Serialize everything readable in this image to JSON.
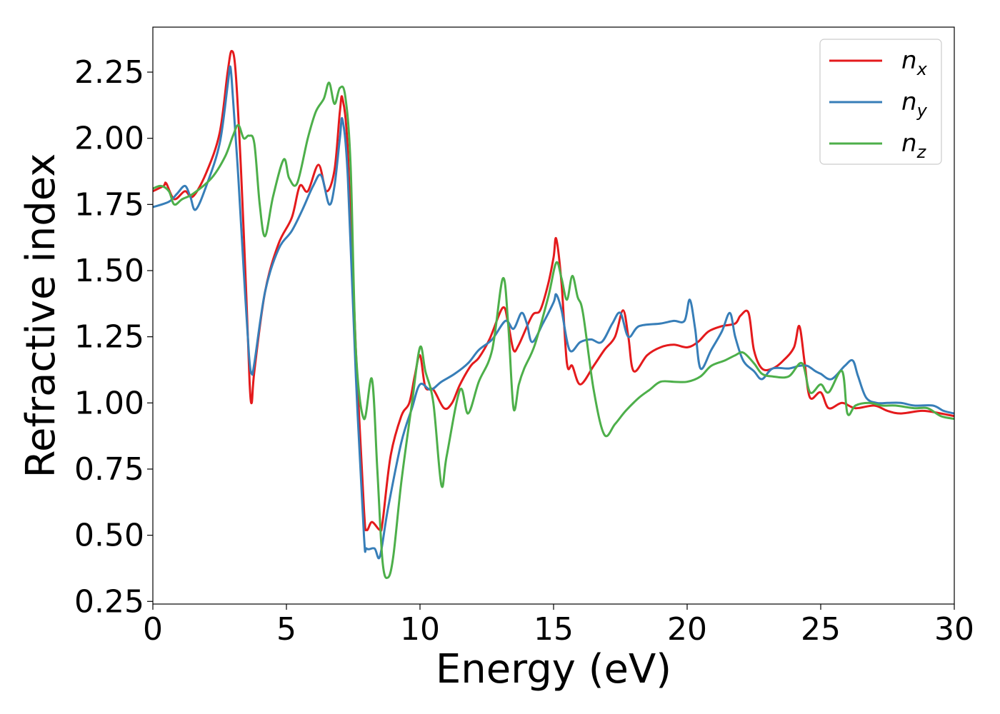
{
  "chart_data": {
    "type": "line",
    "xlabel": "Energy (eV)",
    "ylabel": "Refractive index",
    "xlim": [
      0,
      30
    ],
    "ylim": [
      0.24,
      2.42
    ],
    "xticks": [
      0,
      5,
      10,
      15,
      20,
      25,
      30
    ],
    "yticks": [
      0.25,
      0.5,
      0.75,
      1.0,
      1.25,
      1.5,
      1.75,
      2.0,
      2.25
    ],
    "xtick_labels": [
      "0",
      "5",
      "10",
      "15",
      "20",
      "25",
      "30"
    ],
    "ytick_labels": [
      "0.25",
      "0.50",
      "0.75",
      "1.00",
      "1.25",
      "1.50",
      "1.75",
      "2.00",
      "2.25"
    ],
    "grid": false,
    "legend_position": "top-right",
    "series": [
      {
        "name": "n_x",
        "legend_base": "n",
        "legend_sub": "x",
        "color": "#e41a1c",
        "points": [
          [
            0,
            1.8
          ],
          [
            0.4,
            1.82
          ],
          [
            0.5,
            1.83
          ],
          [
            0.8,
            1.77
          ],
          [
            1.2,
            1.8
          ],
          [
            1.5,
            1.78
          ],
          [
            2.0,
            1.87
          ],
          [
            2.5,
            2.02
          ],
          [
            2.8,
            2.25
          ],
          [
            2.95,
            2.33
          ],
          [
            3.1,
            2.25
          ],
          [
            3.3,
            1.88
          ],
          [
            3.5,
            1.4
          ],
          [
            3.62,
            1.08
          ],
          [
            3.7,
            1.0
          ],
          [
            3.8,
            1.12
          ],
          [
            4.2,
            1.42
          ],
          [
            4.7,
            1.6
          ],
          [
            5.2,
            1.7
          ],
          [
            5.5,
            1.82
          ],
          [
            5.8,
            1.8
          ],
          [
            6.2,
            1.9
          ],
          [
            6.5,
            1.8
          ],
          [
            6.8,
            1.88
          ],
          [
            7.0,
            2.1
          ],
          [
            7.1,
            2.15
          ],
          [
            7.3,
            1.95
          ],
          [
            7.6,
            1.2
          ],
          [
            7.9,
            0.6
          ],
          [
            8.0,
            0.52
          ],
          [
            8.2,
            0.55
          ],
          [
            8.5,
            0.52
          ],
          [
            8.6,
            0.55
          ],
          [
            8.9,
            0.8
          ],
          [
            9.3,
            0.95
          ],
          [
            9.6,
            1.0
          ],
          [
            9.8,
            1.1
          ],
          [
            10.0,
            1.18
          ],
          [
            10.2,
            1.06
          ],
          [
            10.5,
            1.05
          ],
          [
            10.9,
            0.98
          ],
          [
            11.2,
            1.0
          ],
          [
            11.5,
            1.07
          ],
          [
            11.9,
            1.14
          ],
          [
            12.2,
            1.17
          ],
          [
            12.6,
            1.24
          ],
          [
            13.1,
            1.36
          ],
          [
            13.3,
            1.3
          ],
          [
            13.5,
            1.2
          ],
          [
            13.7,
            1.22
          ],
          [
            14.2,
            1.33
          ],
          [
            14.5,
            1.35
          ],
          [
            14.8,
            1.45
          ],
          [
            15.0,
            1.55
          ],
          [
            15.1,
            1.62
          ],
          [
            15.3,
            1.45
          ],
          [
            15.5,
            1.15
          ],
          [
            15.7,
            1.14
          ],
          [
            16.0,
            1.07
          ],
          [
            16.5,
            1.14
          ],
          [
            16.9,
            1.2
          ],
          [
            17.3,
            1.25
          ],
          [
            17.6,
            1.35
          ],
          [
            17.8,
            1.25
          ],
          [
            18.0,
            1.12
          ],
          [
            18.5,
            1.18
          ],
          [
            19.0,
            1.21
          ],
          [
            19.5,
            1.22
          ],
          [
            20.0,
            1.21
          ],
          [
            20.4,
            1.23
          ],
          [
            20.8,
            1.27
          ],
          [
            21.3,
            1.29
          ],
          [
            21.8,
            1.3
          ],
          [
            22.0,
            1.33
          ],
          [
            22.3,
            1.34
          ],
          [
            22.5,
            1.2
          ],
          [
            22.8,
            1.13
          ],
          [
            23.2,
            1.13
          ],
          [
            23.6,
            1.16
          ],
          [
            24.0,
            1.21
          ],
          [
            24.2,
            1.29
          ],
          [
            24.4,
            1.15
          ],
          [
            24.6,
            1.02
          ],
          [
            25.0,
            1.04
          ],
          [
            25.3,
            0.98
          ],
          [
            25.8,
            1.0
          ],
          [
            26.3,
            0.98
          ],
          [
            27.0,
            0.99
          ],
          [
            27.5,
            0.97
          ],
          [
            28.0,
            0.96
          ],
          [
            28.8,
            0.97
          ],
          [
            29.5,
            0.96
          ],
          [
            30,
            0.95
          ]
        ]
      },
      {
        "name": "n_y",
        "legend_base": "n",
        "legend_sub": "y",
        "color": "#377eb8",
        "points": [
          [
            0,
            1.74
          ],
          [
            0.6,
            1.76
          ],
          [
            0.9,
            1.79
          ],
          [
            1.2,
            1.82
          ],
          [
            1.4,
            1.78
          ],
          [
            1.6,
            1.73
          ],
          [
            2.0,
            1.82
          ],
          [
            2.5,
            1.98
          ],
          [
            2.8,
            2.2
          ],
          [
            2.9,
            2.27
          ],
          [
            3.0,
            2.15
          ],
          [
            3.2,
            1.85
          ],
          [
            3.4,
            1.5
          ],
          [
            3.6,
            1.18
          ],
          [
            3.7,
            1.11
          ],
          [
            3.8,
            1.15
          ],
          [
            4.2,
            1.42
          ],
          [
            4.7,
            1.58
          ],
          [
            5.2,
            1.65
          ],
          [
            5.6,
            1.73
          ],
          [
            6.0,
            1.82
          ],
          [
            6.3,
            1.86
          ],
          [
            6.6,
            1.75
          ],
          [
            6.8,
            1.82
          ],
          [
            7.0,
            2.0
          ],
          [
            7.1,
            2.07
          ],
          [
            7.3,
            1.85
          ],
          [
            7.6,
            1.1
          ],
          [
            7.9,
            0.5
          ],
          [
            8.0,
            0.45
          ],
          [
            8.3,
            0.45
          ],
          [
            8.5,
            0.42
          ],
          [
            8.8,
            0.6
          ],
          [
            9.3,
            0.85
          ],
          [
            9.7,
            0.98
          ],
          [
            10.0,
            1.07
          ],
          [
            10.4,
            1.05
          ],
          [
            10.8,
            1.08
          ],
          [
            11.3,
            1.11
          ],
          [
            11.8,
            1.15
          ],
          [
            12.2,
            1.2
          ],
          [
            12.7,
            1.24
          ],
          [
            13.2,
            1.31
          ],
          [
            13.5,
            1.28
          ],
          [
            13.8,
            1.34
          ],
          [
            14.0,
            1.3
          ],
          [
            14.2,
            1.23
          ],
          [
            14.6,
            1.3
          ],
          [
            15.0,
            1.38
          ],
          [
            15.1,
            1.41
          ],
          [
            15.3,
            1.35
          ],
          [
            15.6,
            1.2
          ],
          [
            16.0,
            1.23
          ],
          [
            16.4,
            1.24
          ],
          [
            16.8,
            1.23
          ],
          [
            17.2,
            1.3
          ],
          [
            17.5,
            1.34
          ],
          [
            17.8,
            1.25
          ],
          [
            18.2,
            1.29
          ],
          [
            19.0,
            1.3
          ],
          [
            19.5,
            1.31
          ],
          [
            19.9,
            1.31
          ],
          [
            20.1,
            1.39
          ],
          [
            20.3,
            1.28
          ],
          [
            20.5,
            1.13
          ],
          [
            20.9,
            1.2
          ],
          [
            21.3,
            1.27
          ],
          [
            21.6,
            1.34
          ],
          [
            21.8,
            1.25
          ],
          [
            22.1,
            1.16
          ],
          [
            22.5,
            1.12
          ],
          [
            22.8,
            1.09
          ],
          [
            23.2,
            1.13
          ],
          [
            23.8,
            1.13
          ],
          [
            24.2,
            1.14
          ],
          [
            24.5,
            1.14
          ],
          [
            24.8,
            1.12
          ],
          [
            25.0,
            1.11
          ],
          [
            25.4,
            1.09
          ],
          [
            25.9,
            1.14
          ],
          [
            26.2,
            1.16
          ],
          [
            26.4,
            1.1
          ],
          [
            26.7,
            1.02
          ],
          [
            27.1,
            1.0
          ],
          [
            27.5,
            1.0
          ],
          [
            28.0,
            1.0
          ],
          [
            28.5,
            0.99
          ],
          [
            29.2,
            0.99
          ],
          [
            29.6,
            0.97
          ],
          [
            30,
            0.96
          ]
        ]
      },
      {
        "name": "n_z",
        "legend_base": "n",
        "legend_sub": "z",
        "color": "#4daf4a",
        "points": [
          [
            0,
            1.81
          ],
          [
            0.3,
            1.82
          ],
          [
            0.6,
            1.8
          ],
          [
            0.8,
            1.75
          ],
          [
            1.1,
            1.77
          ],
          [
            1.5,
            1.79
          ],
          [
            2.2,
            1.85
          ],
          [
            2.7,
            1.93
          ],
          [
            3.0,
            2.01
          ],
          [
            3.2,
            2.05
          ],
          [
            3.4,
            2.0
          ],
          [
            3.6,
            2.01
          ],
          [
            3.8,
            1.98
          ],
          [
            4.0,
            1.75
          ],
          [
            4.2,
            1.63
          ],
          [
            4.5,
            1.78
          ],
          [
            4.9,
            1.92
          ],
          [
            5.1,
            1.85
          ],
          [
            5.4,
            1.83
          ],
          [
            5.8,
            2.0
          ],
          [
            6.1,
            2.1
          ],
          [
            6.4,
            2.15
          ],
          [
            6.6,
            2.21
          ],
          [
            6.8,
            2.13
          ],
          [
            7.0,
            2.19
          ],
          [
            7.2,
            2.16
          ],
          [
            7.4,
            1.9
          ],
          [
            7.6,
            1.2
          ],
          [
            7.9,
            0.94
          ],
          [
            8.2,
            1.09
          ],
          [
            8.4,
            0.75
          ],
          [
            8.6,
            0.4
          ],
          [
            8.8,
            0.34
          ],
          [
            9.0,
            0.42
          ],
          [
            9.3,
            0.7
          ],
          [
            9.7,
            1.0
          ],
          [
            10.0,
            1.21
          ],
          [
            10.2,
            1.12
          ],
          [
            10.5,
            1.0
          ],
          [
            10.8,
            0.69
          ],
          [
            11.0,
            0.8
          ],
          [
            11.5,
            1.05
          ],
          [
            11.8,
            0.96
          ],
          [
            12.2,
            1.08
          ],
          [
            12.7,
            1.2
          ],
          [
            13.1,
            1.47
          ],
          [
            13.3,
            1.3
          ],
          [
            13.5,
            0.98
          ],
          [
            13.7,
            1.07
          ],
          [
            13.9,
            1.13
          ],
          [
            14.3,
            1.22
          ],
          [
            14.8,
            1.4
          ],
          [
            15.1,
            1.53
          ],
          [
            15.3,
            1.47
          ],
          [
            15.5,
            1.39
          ],
          [
            15.7,
            1.48
          ],
          [
            15.9,
            1.4
          ],
          [
            16.1,
            1.34
          ],
          [
            16.5,
            1.05
          ],
          [
            16.9,
            0.88
          ],
          [
            17.3,
            0.92
          ],
          [
            17.7,
            0.97
          ],
          [
            18.2,
            1.02
          ],
          [
            18.6,
            1.05
          ],
          [
            19.0,
            1.08
          ],
          [
            19.5,
            1.08
          ],
          [
            20.0,
            1.08
          ],
          [
            20.5,
            1.1
          ],
          [
            20.9,
            1.14
          ],
          [
            21.4,
            1.16
          ],
          [
            21.8,
            1.18
          ],
          [
            22.1,
            1.19
          ],
          [
            22.5,
            1.15
          ],
          [
            22.8,
            1.11
          ],
          [
            23.2,
            1.1
          ],
          [
            23.8,
            1.1
          ],
          [
            24.3,
            1.15
          ],
          [
            24.6,
            1.04
          ],
          [
            25.0,
            1.07
          ],
          [
            25.3,
            1.04
          ],
          [
            25.8,
            1.12
          ],
          [
            26.0,
            0.96
          ],
          [
            26.3,
            0.99
          ],
          [
            26.8,
            1.0
          ],
          [
            27.3,
            0.99
          ],
          [
            27.8,
            0.99
          ],
          [
            28.5,
            0.98
          ],
          [
            29.0,
            0.98
          ],
          [
            29.5,
            0.95
          ],
          [
            30,
            0.94
          ]
        ]
      }
    ]
  }
}
